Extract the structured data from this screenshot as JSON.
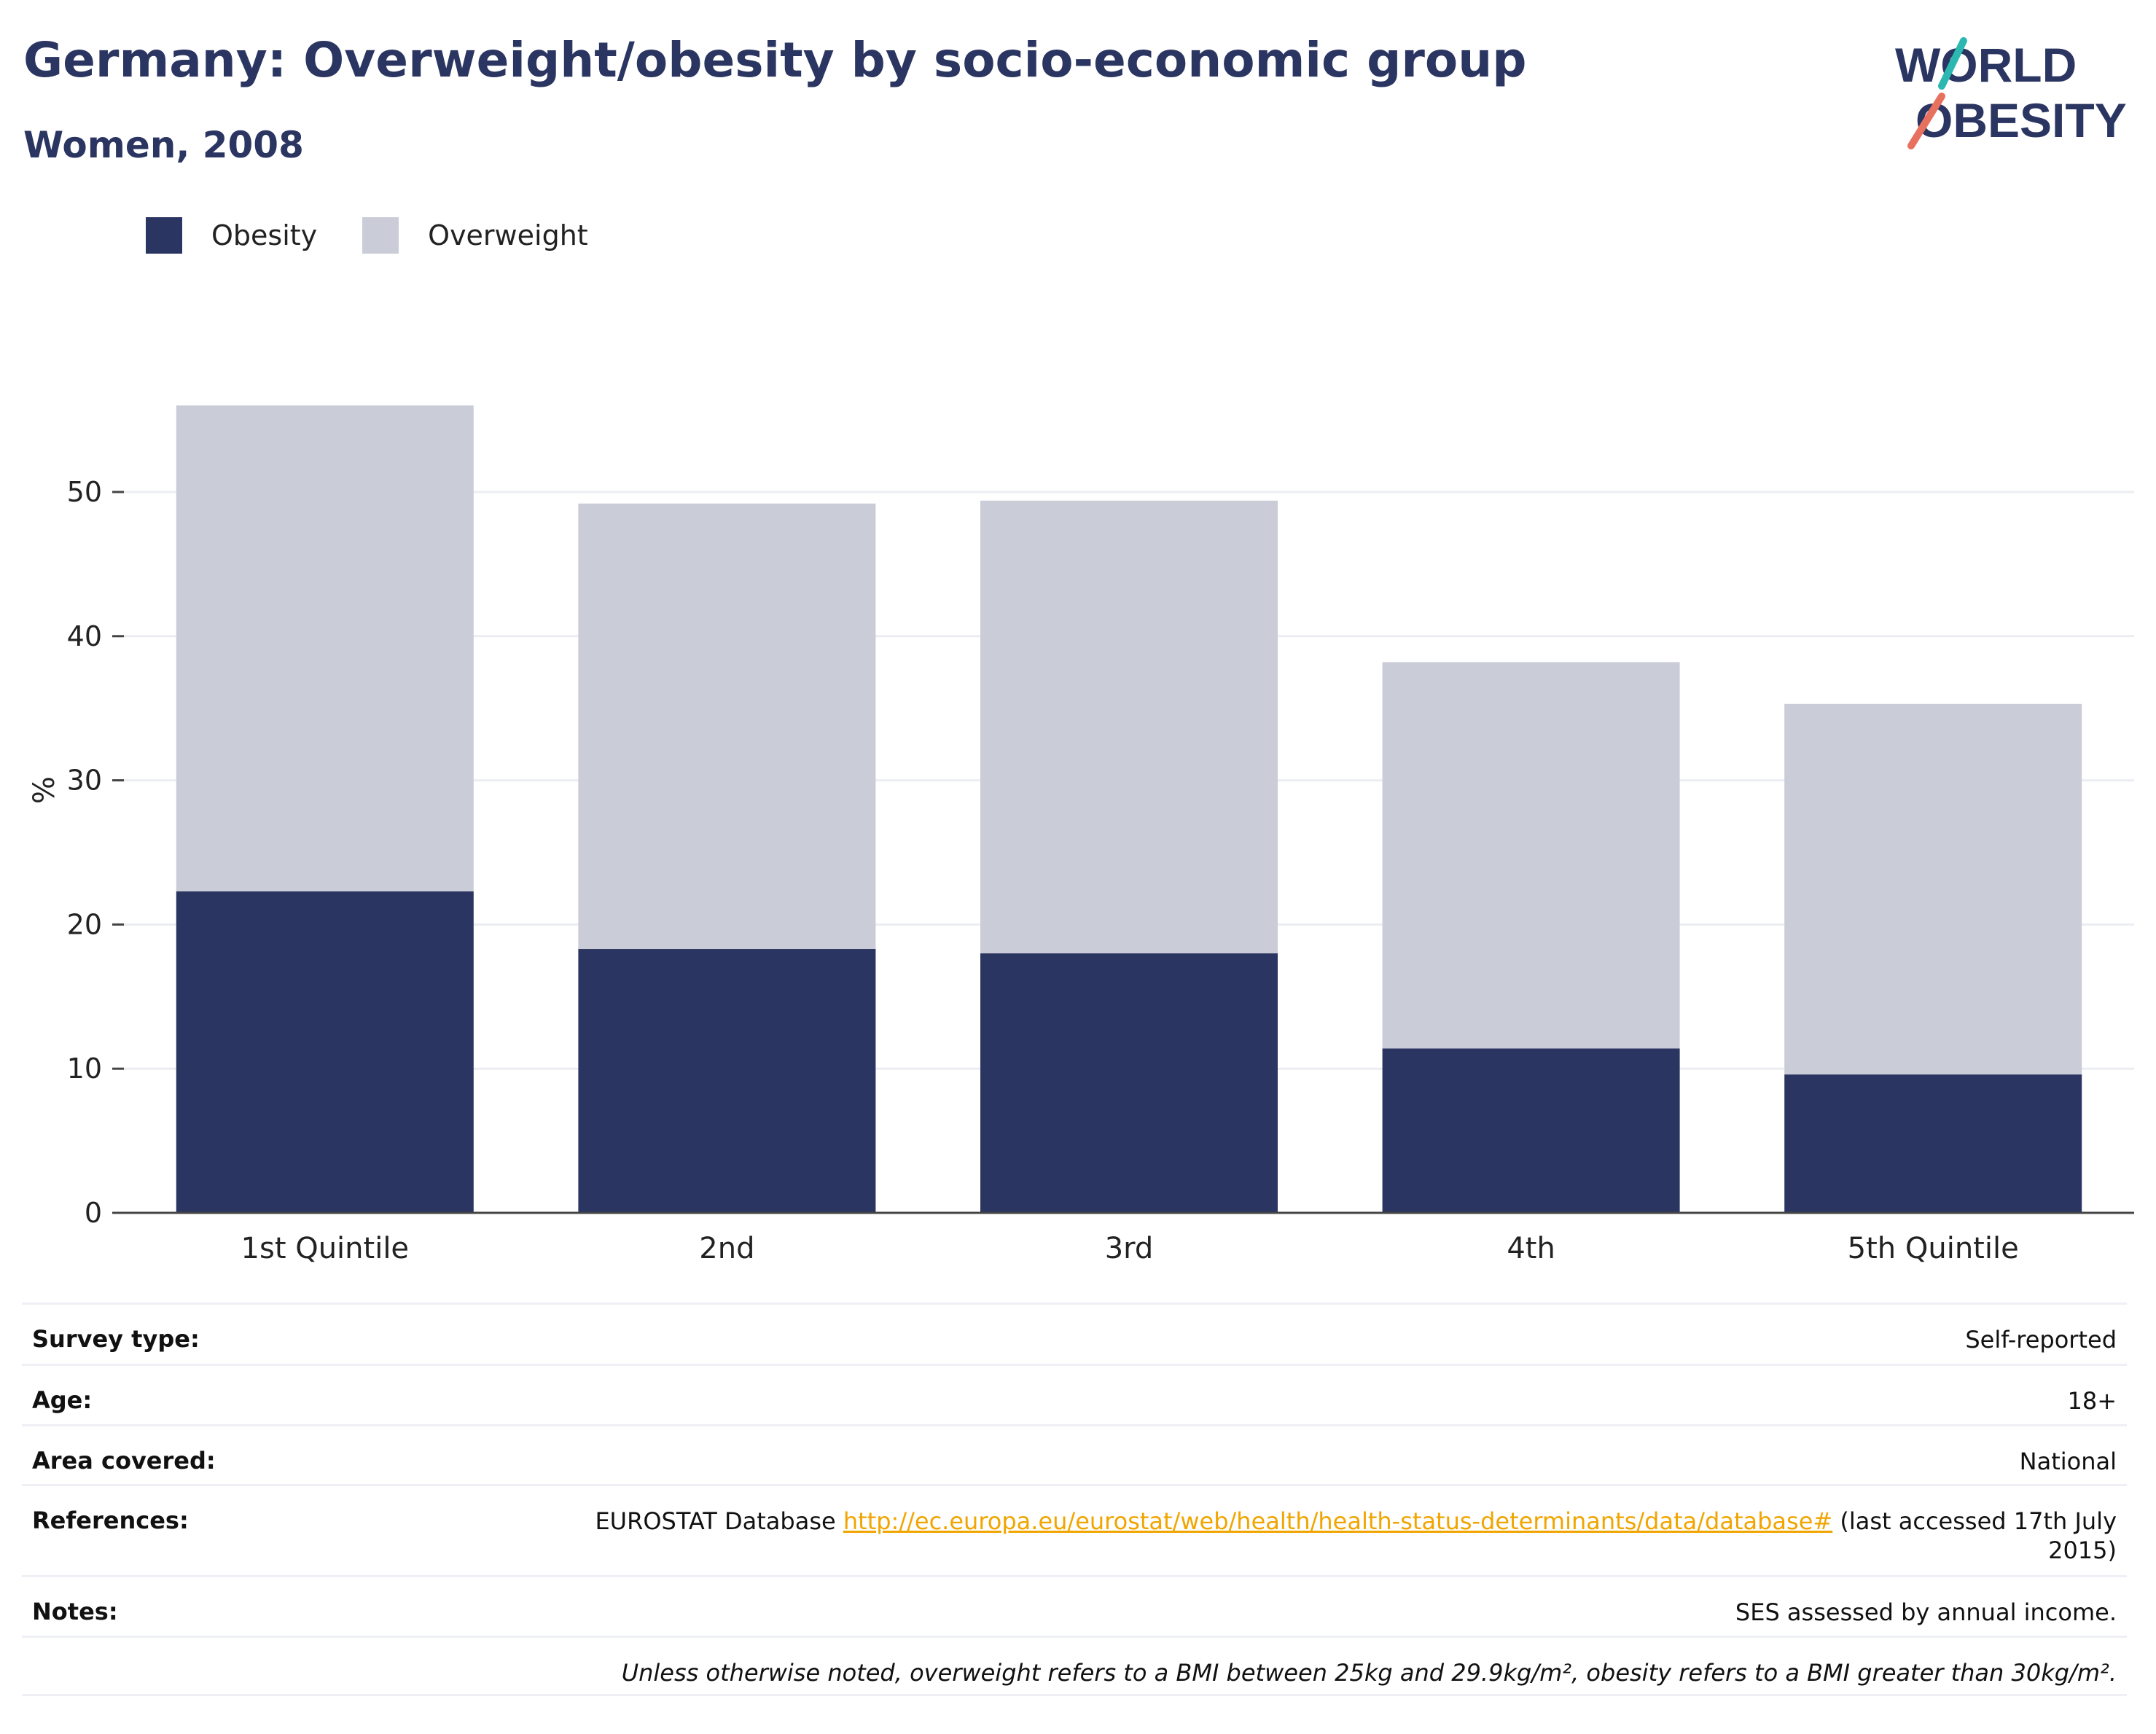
{
  "header": {
    "title": "Germany: Overweight/obesity by socio-economic group",
    "subtitle": "Women, 2008"
  },
  "logo": {
    "line1": "WORLD",
    "line2": "OBESITY"
  },
  "colors": {
    "obesity": "#2b3561",
    "overweight": "#caccd8",
    "title": "#2b3561",
    "link": "#f0a500",
    "logo_teal": "#2bb8b0",
    "logo_coral": "#e8705f"
  },
  "chart_data": {
    "type": "bar",
    "stacked": true,
    "categories": [
      "1st Quintile",
      "2nd",
      "3rd",
      "4th",
      "5th Quintile"
    ],
    "series": [
      {
        "name": "Obesity",
        "values": [
          22.3,
          18.3,
          18.0,
          11.4,
          9.6
        ]
      },
      {
        "name": "Overweight",
        "values": [
          33.7,
          30.9,
          31.4,
          26.8,
          25.7
        ]
      }
    ],
    "ylabel": "%",
    "ylim": [
      0,
      58
    ],
    "yticks": [
      0,
      10,
      20,
      30,
      40,
      50
    ],
    "grid": true,
    "legend_position": "top-left"
  },
  "info": {
    "survey_type": {
      "label": "Survey type:",
      "value": "Self-reported"
    },
    "age": {
      "label": "Age:",
      "value": "18+"
    },
    "area": {
      "label": "Area covered:",
      "value": "National"
    },
    "references": {
      "label": "References:",
      "prefix": "EUROSTAT Database",
      "link": "http://ec.europa.eu/eurostat/web/health/health-status-determinants/data/database#",
      "suffix": "(last accessed 17th July 2015)"
    },
    "notes": {
      "label": "Notes:",
      "value": "SES assessed by annual income."
    },
    "disclaimer": "Unless otherwise noted, overweight refers to a BMI between 25kg and 29.9kg/m², obesity refers to a BMI greater than 30kg/m²."
  }
}
